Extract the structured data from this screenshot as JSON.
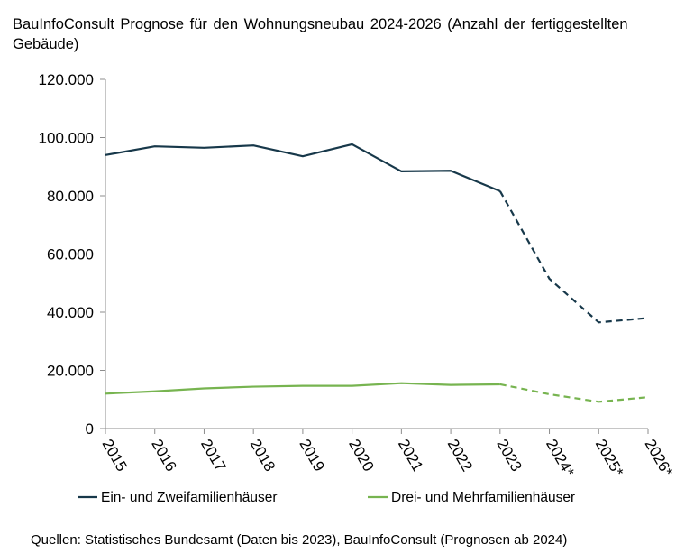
{
  "chart_data": {
    "type": "line",
    "title": "BauInfoConsult  Prognose  für den  Wohnungsneubau  2024-2026  (Anzahl  der  fertiggestellten Gebäude)",
    "categories": [
      "2015",
      "2016",
      "2017",
      "2018",
      "2019",
      "2020",
      "2021",
      "2022",
      "2023",
      "2024*",
      "2025*",
      "2026*"
    ],
    "y_tick_labels": [
      "0",
      "20.000",
      "40.000",
      "60.000",
      "80.000",
      "100.000",
      "120.000"
    ],
    "y_ticks": [
      0,
      20000,
      40000,
      60000,
      80000,
      100000,
      120000
    ],
    "ylim": [
      0,
      120000
    ],
    "forecast_start_index": 8,
    "series": [
      {
        "name": "Ein- und Zweifamilienhäuser",
        "color": "#17384a",
        "values": [
          94000,
          97000,
          96500,
          97300,
          93600,
          97700,
          88400,
          88600,
          81600,
          51500,
          36500,
          38000
        ]
      },
      {
        "name": "Drei- und Mehrfamilienhäuser",
        "color": "#77b450",
        "values": [
          12000,
          12800,
          13800,
          14400,
          14700,
          14700,
          15600,
          15000,
          15200,
          11800,
          9200,
          10800
        ]
      }
    ],
    "source": "Quellen:  Statistisches Bundesamt  (Daten bis 2023),  BauInfoConsult  (Prognosen ab 2024)"
  }
}
